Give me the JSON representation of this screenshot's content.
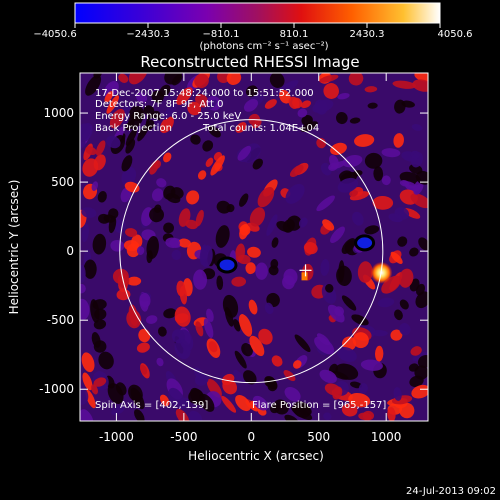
{
  "title": "Reconstructed RHESSI Image",
  "colorbar": {
    "ticks": [
      "−4050.6",
      "−2430.3",
      "−810.1",
      "810.1",
      "2430.3",
      "4050.6"
    ],
    "unit_label": "(photons cm⁻² s⁻¹ asec⁻²)",
    "range": [
      -4050.6,
      4050.6
    ]
  },
  "info": {
    "time": "17-Dec-2007 15:48:24.000 to 15:51:52.000",
    "detectors": "Detectors: 7F 8F 9F, Att 0",
    "energy": "Energy Range: 6.0 - 25.0 keV",
    "method": "Back Projection",
    "counts": "Total counts: 1.04E+04",
    "spin_axis": "Spin Axis = [402,-139]",
    "flare_position": "Flare Position = [965,-157]"
  },
  "axes": {
    "xlabel": "Heliocentric X (arcsec)",
    "ylabel": "Heliocentric Y (arcsec)",
    "x_ticks": [
      "-1000",
      "-500",
      "0",
      "500",
      "1000"
    ],
    "y_ticks": [
      "1000",
      "500",
      "0",
      "-500",
      "-1000"
    ],
    "x_values": [
      -1000,
      -500,
      0,
      500,
      1000
    ],
    "y_values": [
      1000,
      500,
      0,
      -500,
      -1000
    ],
    "xlim": [
      -1270,
      1310
    ],
    "ylim": [
      -1230,
      1290
    ]
  },
  "solar_limb_radius_arcsec": 975,
  "spin_axis_xy": [
    402,
    -139
  ],
  "flare_xy": [
    965,
    -157
  ],
  "footer": "24-Jul-2013 09:02",
  "colors": {
    "background": "#000000",
    "text": "#ffffff",
    "colormap": [
      "#0000ff",
      "#4a00d0",
      "#8a00a8",
      "#c01830",
      "#ff2a00",
      "#ff8c00",
      "#ffd040",
      "#ffffff"
    ]
  }
}
